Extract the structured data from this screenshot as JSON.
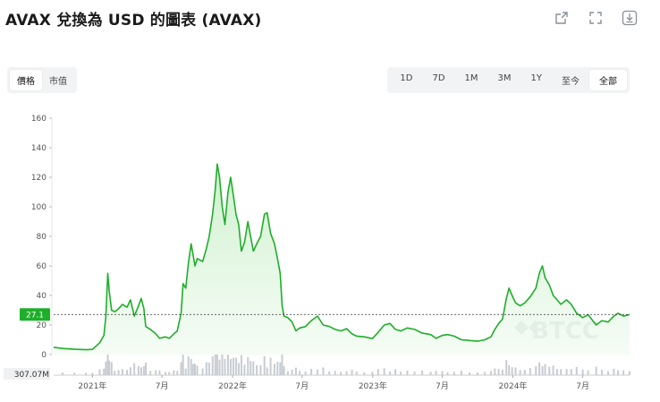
{
  "header": {
    "title": "AVAX 兌換為 USD 的圖表 (AVAX)",
    "icons": [
      "share-icon",
      "fullscreen-icon",
      "download-icon"
    ]
  },
  "metric_tabs": [
    {
      "label": "價格",
      "active": true
    },
    {
      "label": "市值",
      "active": false
    }
  ],
  "range_tabs": [
    {
      "label": "1D",
      "active": false
    },
    {
      "label": "7D",
      "active": false
    },
    {
      "label": "1M",
      "active": false
    },
    {
      "label": "3M",
      "active": false
    },
    {
      "label": "1Y",
      "active": false
    },
    {
      "label": "至今",
      "active": false
    },
    {
      "label": "全部",
      "active": true
    }
  ],
  "colors": {
    "line": "#1fae2a",
    "fill_top": "#c9efc9",
    "current_label_bg": "#1fae2a",
    "volume": "#c8ccd2",
    "watermark": "#d8dde3"
  },
  "watermark": "BTCC",
  "chart_data": {
    "type": "line",
    "title": "",
    "xlabel": "",
    "ylabel": "",
    "ylim": [
      0,
      160
    ],
    "y_ticks": [
      0,
      20,
      40,
      60,
      80,
      100,
      120,
      140,
      160
    ],
    "x_tick_labels": [
      {
        "label": "2021年",
        "x": "2021-01-01"
      },
      {
        "label": "7月",
        "x": "2021-07-01"
      },
      {
        "label": "2022年",
        "x": "2022-01-01"
      },
      {
        "label": "7月",
        "x": "2022-07-01"
      },
      {
        "label": "2023年",
        "x": "2023-01-01"
      },
      {
        "label": "7月",
        "x": "2023-07-01"
      },
      {
        "label": "2024年",
        "x": "2024-01-01"
      },
      {
        "label": "7月",
        "x": "2024-07-01"
      }
    ],
    "x_range": [
      "2020-09-22",
      "2024-10-31"
    ],
    "current_value": 27.1,
    "current_label": "27.1",
    "volume_label": "307.07M",
    "series": [
      {
        "points": [
          [
            "2020-09-22",
            4.9
          ],
          [
            "2020-10-15",
            4.1
          ],
          [
            "2020-11-15",
            3.6
          ],
          [
            "2020-12-15",
            3.3
          ],
          [
            "2021-01-01",
            3.5
          ],
          [
            "2021-01-20",
            8.0
          ],
          [
            "2021-01-31",
            13.0
          ],
          [
            "2021-02-05",
            26.0
          ],
          [
            "2021-02-10",
            55.0
          ],
          [
            "2021-02-14",
            42.0
          ],
          [
            "2021-02-20",
            30.0
          ],
          [
            "2021-02-28",
            29.0
          ],
          [
            "2021-03-10",
            31.0
          ],
          [
            "2021-03-20",
            34.0
          ],
          [
            "2021-04-01",
            32.0
          ],
          [
            "2021-04-10",
            37.0
          ],
          [
            "2021-04-20",
            26.0
          ],
          [
            "2021-05-01",
            33.0
          ],
          [
            "2021-05-08",
            38.0
          ],
          [
            "2021-05-15",
            31.0
          ],
          [
            "2021-05-20",
            19.0
          ],
          [
            "2021-06-01",
            17.0
          ],
          [
            "2021-06-15",
            14.0
          ],
          [
            "2021-06-25",
            11.0
          ],
          [
            "2021-07-10",
            12.0
          ],
          [
            "2021-07-20",
            11.0
          ],
          [
            "2021-08-01",
            14.0
          ],
          [
            "2021-08-10",
            16.0
          ],
          [
            "2021-08-20",
            28.0
          ],
          [
            "2021-08-25",
            48.0
          ],
          [
            "2021-09-01",
            45.0
          ],
          [
            "2021-09-08",
            62.0
          ],
          [
            "2021-09-15",
            75.0
          ],
          [
            "2021-09-20",
            68.0
          ],
          [
            "2021-09-25",
            60.0
          ],
          [
            "2021-10-01",
            65.0
          ],
          [
            "2021-10-15",
            63.0
          ],
          [
            "2021-10-25",
            72.0
          ],
          [
            "2021-11-01",
            80.0
          ],
          [
            "2021-11-10",
            95.0
          ],
          [
            "2021-11-17",
            112.0
          ],
          [
            "2021-11-22",
            129.0
          ],
          [
            "2021-11-28",
            120.0
          ],
          [
            "2021-12-05",
            100.0
          ],
          [
            "2021-12-12",
            88.0
          ],
          [
            "2021-12-20",
            110.0
          ],
          [
            "2021-12-27",
            120.0
          ],
          [
            "2022-01-03",
            108.0
          ],
          [
            "2022-01-10",
            95.0
          ],
          [
            "2022-01-17",
            88.0
          ],
          [
            "2022-01-24",
            70.0
          ],
          [
            "2022-02-01",
            76.0
          ],
          [
            "2022-02-10",
            90.0
          ],
          [
            "2022-02-17",
            80.0
          ],
          [
            "2022-02-24",
            70.0
          ],
          [
            "2022-03-05",
            75.0
          ],
          [
            "2022-03-15",
            80.0
          ],
          [
            "2022-03-25",
            95.0
          ],
          [
            "2022-04-01",
            96.0
          ],
          [
            "2022-04-10",
            82.0
          ],
          [
            "2022-04-20",
            75.0
          ],
          [
            "2022-04-28",
            65.0
          ],
          [
            "2022-05-05",
            55.0
          ],
          [
            "2022-05-10",
            33.0
          ],
          [
            "2022-05-15",
            26.0
          ],
          [
            "2022-05-25",
            25.0
          ],
          [
            "2022-06-05",
            22.0
          ],
          [
            "2022-06-15",
            16.0
          ],
          [
            "2022-06-25",
            18.0
          ],
          [
            "2022-07-10",
            19.0
          ],
          [
            "2022-07-25",
            23.0
          ],
          [
            "2022-08-10",
            26.0
          ],
          [
            "2022-08-25",
            20.0
          ],
          [
            "2022-09-10",
            19.0
          ],
          [
            "2022-09-25",
            17.0
          ],
          [
            "2022-10-10",
            16.0
          ],
          [
            "2022-10-25",
            17.5
          ],
          [
            "2022-11-08",
            14.0
          ],
          [
            "2022-11-20",
            12.5
          ],
          [
            "2022-12-10",
            12.0
          ],
          [
            "2022-12-31",
            10.8
          ],
          [
            "2023-01-15",
            15.0
          ],
          [
            "2023-01-31",
            20.0
          ],
          [
            "2023-02-15",
            21.0
          ],
          [
            "2023-03-01",
            17.0
          ],
          [
            "2023-03-15",
            16.0
          ],
          [
            "2023-04-01",
            18.0
          ],
          [
            "2023-04-20",
            17.0
          ],
          [
            "2023-05-10",
            14.5
          ],
          [
            "2023-06-01",
            13.5
          ],
          [
            "2023-06-15",
            11.0
          ],
          [
            "2023-07-01",
            13.0
          ],
          [
            "2023-07-15",
            13.5
          ],
          [
            "2023-08-01",
            12.5
          ],
          [
            "2023-08-20",
            10.0
          ],
          [
            "2023-09-10",
            9.5
          ],
          [
            "2023-10-01",
            9.0
          ],
          [
            "2023-10-20",
            10.0
          ],
          [
            "2023-11-05",
            12.0
          ],
          [
            "2023-11-15",
            17.0
          ],
          [
            "2023-11-25",
            21.0
          ],
          [
            "2023-12-05",
            24.0
          ],
          [
            "2023-12-15",
            38.0
          ],
          [
            "2023-12-22",
            45.0
          ],
          [
            "2023-12-30",
            40.0
          ],
          [
            "2024-01-08",
            35.0
          ],
          [
            "2024-01-20",
            33.0
          ],
          [
            "2024-02-01",
            35.0
          ],
          [
            "2024-02-15",
            39.0
          ],
          [
            "2024-03-01",
            45.0
          ],
          [
            "2024-03-10",
            55.0
          ],
          [
            "2024-03-18",
            60.0
          ],
          [
            "2024-03-25",
            52.0
          ],
          [
            "2024-04-05",
            47.0
          ],
          [
            "2024-04-15",
            40.0
          ],
          [
            "2024-04-25",
            37.0
          ],
          [
            "2024-05-05",
            34.0
          ],
          [
            "2024-05-20",
            37.0
          ],
          [
            "2024-06-01",
            34.0
          ],
          [
            "2024-06-15",
            28.0
          ],
          [
            "2024-07-01",
            25.0
          ],
          [
            "2024-07-15",
            27.0
          ],
          [
            "2024-08-05",
            20.0
          ],
          [
            "2024-08-20",
            23.0
          ],
          [
            "2024-09-05",
            22.0
          ],
          [
            "2024-09-20",
            26.0
          ],
          [
            "2024-10-01",
            28.0
          ],
          [
            "2024-10-15",
            26.0
          ],
          [
            "2024-10-31",
            27.1
          ]
        ]
      }
    ]
  }
}
